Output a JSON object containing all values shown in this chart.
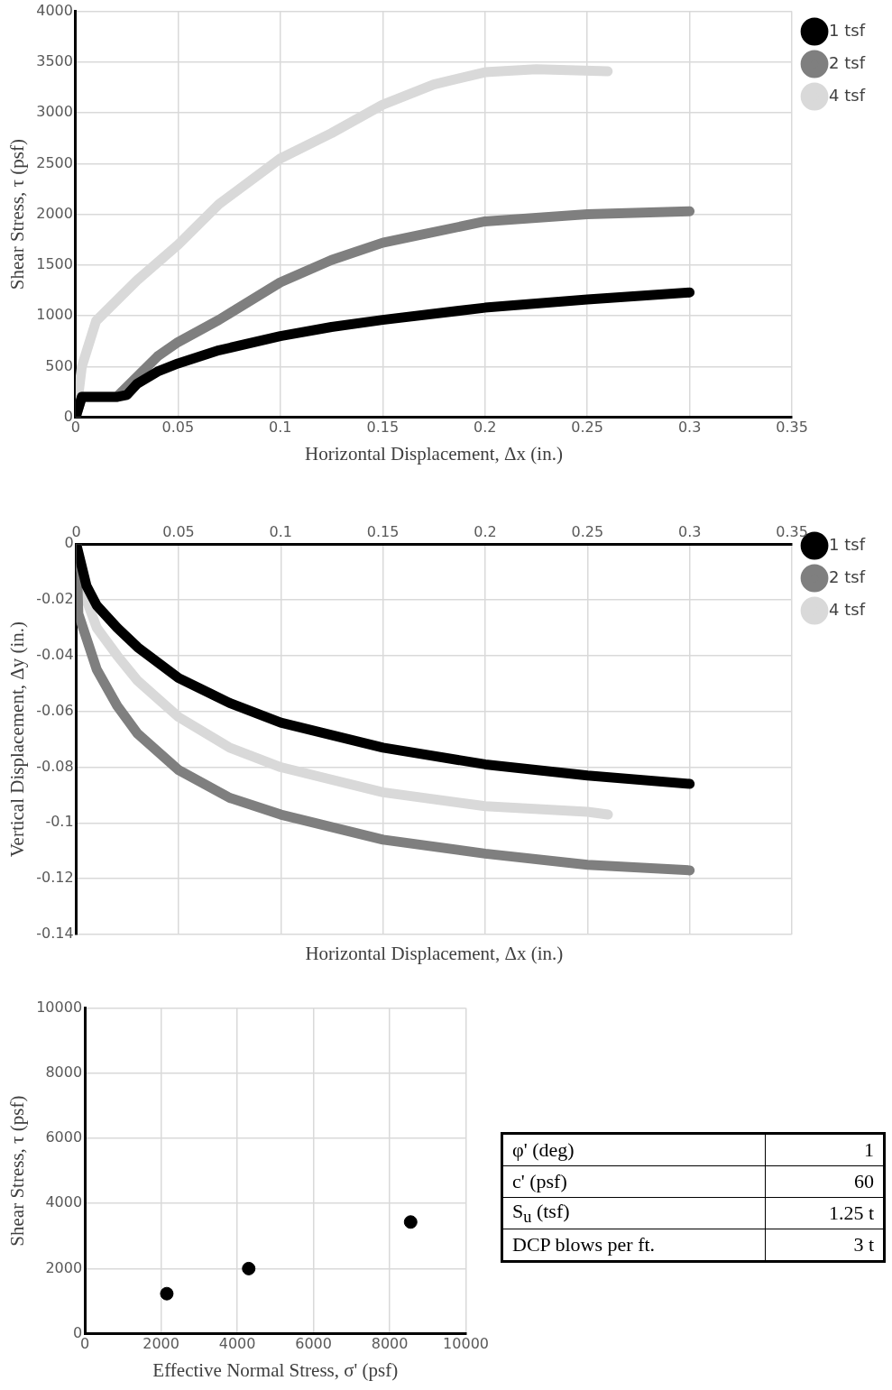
{
  "chart_data": [
    {
      "type": "line",
      "xlabel": "Horizontal Displacement, Δx (in.)",
      "ylabel": "Shear Stress, τ (psf)",
      "xlim": [
        0,
        0.35
      ],
      "xticks": [
        0,
        0.05,
        0.1,
        0.15,
        0.2,
        0.25,
        0.3,
        0.35
      ],
      "ylim": [
        0,
        4000
      ],
      "yticks": [
        0,
        500,
        1000,
        1500,
        2000,
        2500,
        3000,
        3500,
        4000
      ],
      "grid": true,
      "legend": "top right",
      "marker": "none",
      "line_style": "solid",
      "series": [
        {
          "name": "1 tsf",
          "color": "#000000",
          "x": [
            0,
            0.003,
            0.02,
            0.025,
            0.03,
            0.04,
            0.05,
            0.07,
            0.1,
            0.125,
            0.15,
            0.2,
            0.25,
            0.3
          ],
          "values": [
            0,
            200,
            200,
            220,
            330,
            450,
            530,
            660,
            800,
            890,
            960,
            1080,
            1160,
            1230
          ]
        },
        {
          "name": "2 tsf",
          "color": "#7f7f7f",
          "x": [
            0,
            0.003,
            0.02,
            0.03,
            0.04,
            0.05,
            0.07,
            0.1,
            0.125,
            0.15,
            0.2,
            0.25,
            0.3
          ],
          "values": [
            0,
            200,
            200,
            400,
            600,
            740,
            960,
            1330,
            1550,
            1720,
            1930,
            2000,
            2030
          ]
        },
        {
          "name": "4 tsf",
          "color": "#d9d9d9",
          "x": [
            0,
            0.003,
            0.01,
            0.02,
            0.03,
            0.05,
            0.07,
            0.1,
            0.125,
            0.15,
            0.175,
            0.2,
            0.225,
            0.26
          ],
          "values": [
            0,
            500,
            950,
            1150,
            1350,
            1700,
            2100,
            2550,
            2800,
            3080,
            3280,
            3400,
            3430,
            3410
          ]
        }
      ]
    },
    {
      "type": "line",
      "xlabel": "Horizontal Displacement, Δx (in.)",
      "ylabel": "Vertical Displacement, Δy (in.)",
      "xlim": [
        0,
        0.35
      ],
      "xticks": [
        0,
        0.05,
        0.1,
        0.15,
        0.2,
        0.25,
        0.3,
        0.35
      ],
      "ylim": [
        -0.14,
        0
      ],
      "yticks": [
        -0.14,
        -0.12,
        -0.1,
        -0.08,
        -0.06,
        -0.04,
        -0.02,
        0
      ],
      "grid": true,
      "legend": "top right",
      "marker": "none",
      "line_style": "solid",
      "series": [
        {
          "name": "1 tsf",
          "color": "#000000",
          "x": [
            0,
            0.005,
            0.01,
            0.02,
            0.03,
            0.05,
            0.075,
            0.1,
            0.15,
            0.2,
            0.25,
            0.3
          ],
          "values": [
            0,
            -0.015,
            -0.022,
            -0.03,
            -0.037,
            -0.048,
            -0.057,
            -0.064,
            -0.073,
            -0.079,
            -0.083,
            -0.086
          ]
        },
        {
          "name": "2 tsf",
          "color": "#7f7f7f",
          "x": [
            0,
            0.001,
            0.01,
            0.02,
            0.03,
            0.05,
            0.075,
            0.1,
            0.15,
            0.2,
            0.25,
            0.3
          ],
          "values": [
            0,
            -0.025,
            -0.045,
            -0.058,
            -0.068,
            -0.081,
            -0.091,
            -0.097,
            -0.106,
            -0.111,
            -0.115,
            -0.117
          ]
        },
        {
          "name": "4 tsf",
          "color": "#d9d9d9",
          "x": [
            0,
            0.005,
            0.01,
            0.02,
            0.03,
            0.05,
            0.075,
            0.1,
            0.15,
            0.2,
            0.25,
            0.26
          ],
          "values": [
            0,
            -0.02,
            -0.03,
            -0.04,
            -0.049,
            -0.062,
            -0.073,
            -0.08,
            -0.089,
            -0.094,
            -0.096,
            -0.097
          ]
        }
      ]
    },
    {
      "type": "scatter",
      "xlabel": "Effective Normal Stress, σ' (psf)",
      "ylabel": "Shear Stress, τ (psf)",
      "xlim": [
        0,
        10000
      ],
      "xticks": [
        0,
        2000,
        4000,
        6000,
        8000,
        10000
      ],
      "ylim": [
        0,
        10000
      ],
      "yticks": [
        0,
        2000,
        4000,
        6000,
        8000,
        10000
      ],
      "grid": true,
      "marker": "circle",
      "series": [
        {
          "color": "#000000",
          "x": [
            2150,
            4300,
            8550
          ],
          "values": [
            1230,
            2000,
            3430
          ]
        }
      ]
    },
    {
      "type": "other",
      "annotations": [
        "φ' (deg)",
        "1",
        "c' (psf)",
        "60",
        "S$_{u}$ (tsf)",
        "1.25 t",
        "DCP blows per ft.",
        "3 t"
      ]
    }
  ]
}
